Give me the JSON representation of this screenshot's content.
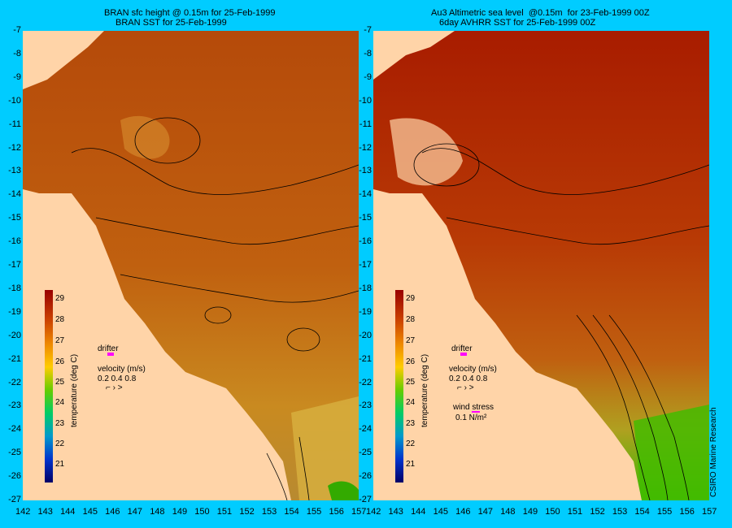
{
  "left": {
    "title1": "BRAN sfc height @ 0.15m for 25-Feb-1999",
    "title2": "BRAN SST for 25-Feb-1999",
    "drifter": "drifter",
    "velocity": "velocity (m/s)",
    "vel_vals": "0.2 0.4 0.8"
  },
  "right": {
    "title1": "Au3 Altimetric sea level  @0.15m  for 23-Feb-1999 00Z",
    "title2": "6day AVHRR SST for 25-Feb-1999 00Z",
    "drifter": "drifter",
    "velocity": "velocity (m/s)",
    "vel_vals": "0.2 0.4 0.8",
    "wind": "wind stress",
    "wind_val": "0.1 N/m²"
  },
  "colorbar": {
    "label": "temperature (deg C)",
    "ticks": [
      "29",
      "28",
      "27",
      "26",
      "25",
      "24",
      "23",
      "22",
      "21"
    ]
  },
  "x_ticks": [
    "142",
    "143",
    "144",
    "145",
    "146",
    "147",
    "148",
    "149",
    "150",
    "151",
    "152",
    "153",
    "154",
    "155",
    "156",
    "157"
  ],
  "y_ticks": [
    "-7",
    "-8",
    "-9",
    "-10",
    "-11",
    "-12",
    "-13",
    "-14",
    "-15",
    "-16",
    "-17",
    "-18",
    "-19",
    "-20",
    "-21",
    "-22",
    "-23",
    "-24",
    "-25",
    "-26",
    "-27"
  ],
  "credit": "CSIRO Marine Research"
}
